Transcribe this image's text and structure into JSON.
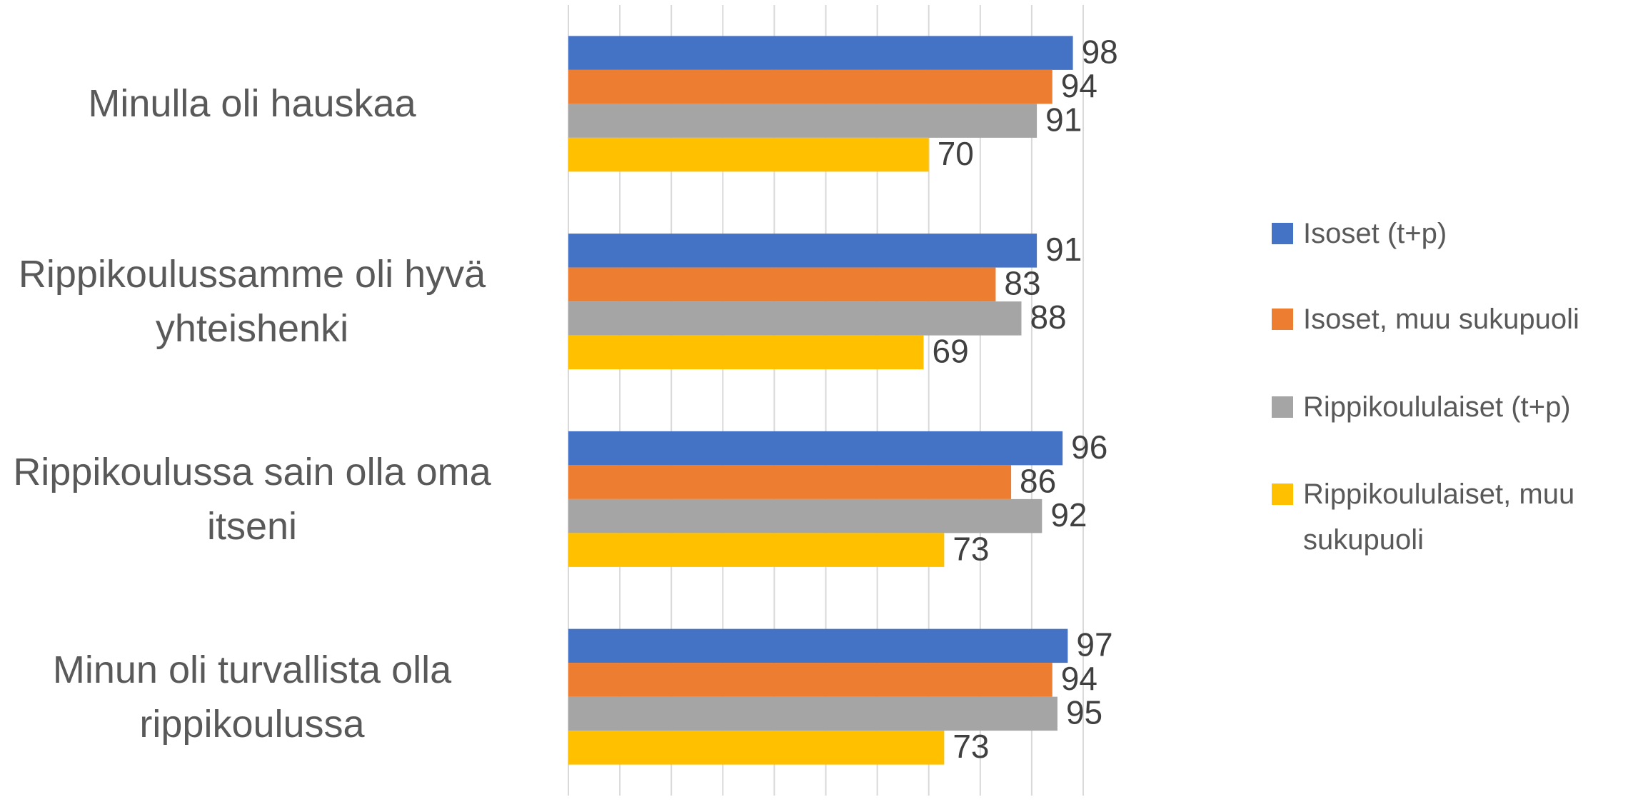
{
  "chart_data": {
    "type": "hbar",
    "categories": [
      "Minulla oli hauskaa",
      "Rippikoulussamme oli hyvä yhteishenki",
      "Rippikoulussa sain olla oma itseni",
      "Minun oli turvallista olla rippikoulussa"
    ],
    "series": [
      {
        "name": "Isoset (t+p)",
        "color": "#4472c4",
        "values": [
          98,
          91,
          96,
          97
        ]
      },
      {
        "name": "Isoset, muu sukupuoli",
        "color": "#ed7d31",
        "values": [
          94,
          83,
          86,
          94
        ]
      },
      {
        "name": "Rippikoululaiset (t+p)",
        "color": "#a5a5a5",
        "values": [
          91,
          88,
          92,
          95
        ]
      },
      {
        "name": "Rippikoululaiset, muu sukupuoli",
        "color": "#ffc000",
        "values": [
          70,
          69,
          73,
          73
        ]
      }
    ],
    "xlim": [
      0,
      100
    ],
    "xticks": [
      0,
      10,
      20,
      30,
      40,
      50,
      60,
      70,
      80,
      90,
      100
    ],
    "grid": true,
    "legend": "right"
  }
}
